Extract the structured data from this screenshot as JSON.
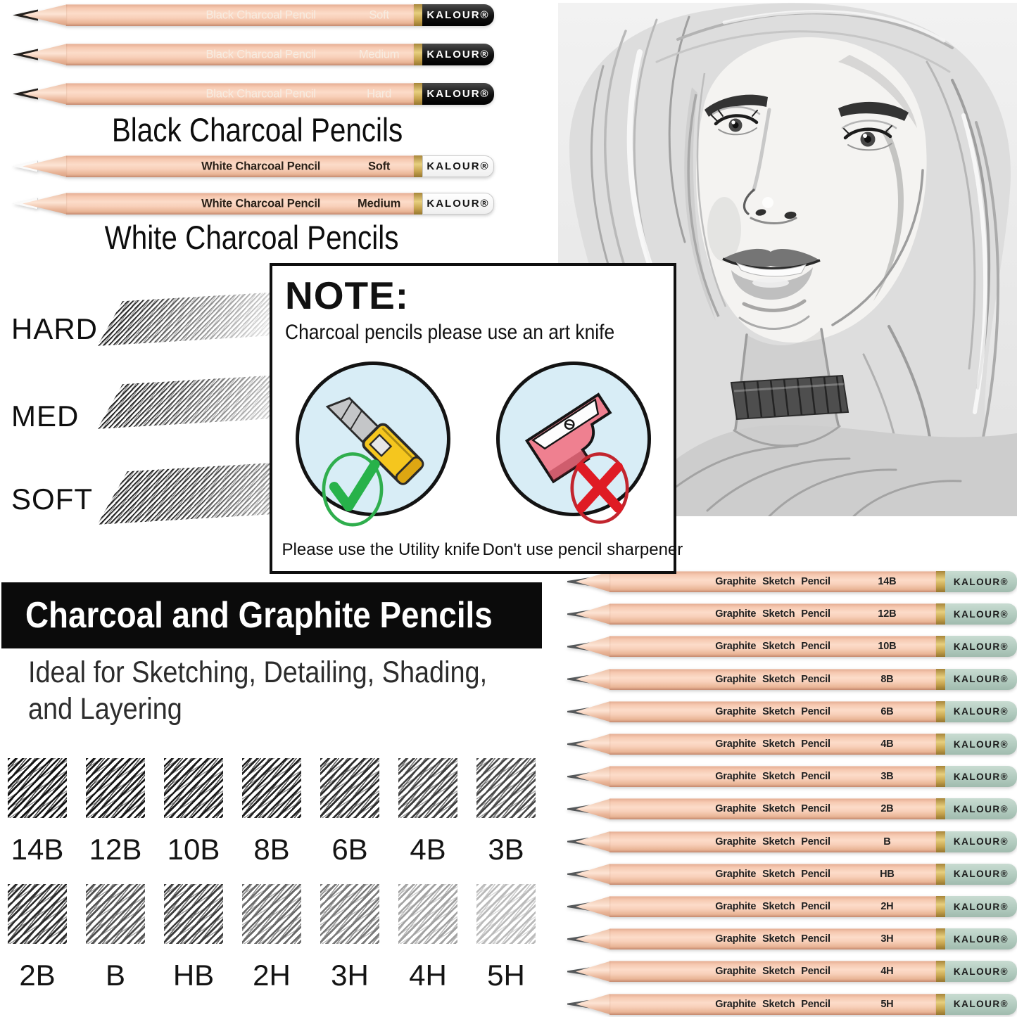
{
  "brand": "KALOUR®",
  "black_charcoal": {
    "title": "Black Charcoal Pencils",
    "label": "Black Charcoal Pencil",
    "grades": [
      "Soft",
      "Medium",
      "Hard"
    ]
  },
  "white_charcoal": {
    "title": "White Charcoal Pencils",
    "label": "White Charcoal Pencil",
    "grades": [
      "Soft",
      "Medium"
    ]
  },
  "hardness_demo": {
    "labels": [
      "HARD",
      "MED",
      "SOFT"
    ]
  },
  "note": {
    "heading": "NOTE:",
    "subtitle": "Charcoal pencils please use an art knife",
    "allowed_caption": "Please use the Utility knife",
    "forbidden_caption": "Don't use pencil sharpener"
  },
  "portrait": {
    "alt": "Pencil sketch portrait of a woman"
  },
  "banner": {
    "title": "Charcoal and Graphite Pencils"
  },
  "intro": {
    "line1": "Ideal for Sketching, Detailing, Shading,",
    "line2": "and Layering"
  },
  "swatches": {
    "row1": [
      {
        "label": "14B",
        "darkness": 0.98
      },
      {
        "label": "12B",
        "darkness": 0.96
      },
      {
        "label": "10B",
        "darkness": 0.94
      },
      {
        "label": "8B",
        "darkness": 0.92
      },
      {
        "label": "6B",
        "darkness": 0.87
      },
      {
        "label": "4B",
        "darkness": 0.8
      },
      {
        "label": "3B",
        "darkness": 0.76
      }
    ],
    "row2": [
      {
        "label": "2B",
        "darkness": 0.88
      },
      {
        "label": "B",
        "darkness": 0.72
      },
      {
        "label": "HB",
        "darkness": 0.8
      },
      {
        "label": "2H",
        "darkness": 0.62
      },
      {
        "label": "3H",
        "darkness": 0.55
      },
      {
        "label": "4H",
        "darkness": 0.38
      },
      {
        "label": "5H",
        "darkness": 0.28
      }
    ]
  },
  "graphite": {
    "label": "Graphite Sketch Pencil",
    "grades": [
      "14B",
      "12B",
      "10B",
      "8B",
      "6B",
      "4B",
      "3B",
      "2B",
      "B",
      "HB",
      "2H",
      "3H",
      "4H",
      "5H"
    ]
  },
  "colors": {
    "wood": "#f6cab4",
    "gold_band": "#c9a44e",
    "cap_black": "#161616",
    "cap_white": "#ffffff",
    "cap_green": "#b5cdc2",
    "note_circle_bg": "#d8edf6",
    "check_green": "#2db24b",
    "cross_red": "#df1b24",
    "knife_yellow": "#f5c61e",
    "sharpener_red": "#ef8090"
  }
}
